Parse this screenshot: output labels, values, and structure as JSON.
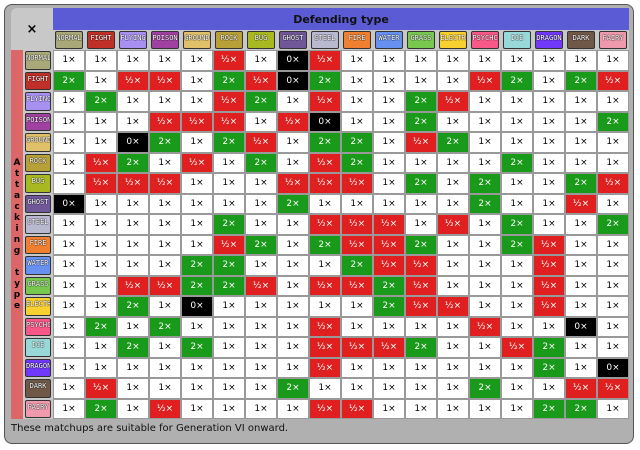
{
  "corner": "×",
  "header": "Defending type",
  "side_title": "Attacking type",
  "types": [
    {
      "label": "NORMAL",
      "color": "#a8a878"
    },
    {
      "label": "FIGHT",
      "color": "#c03028"
    },
    {
      "label": "FLYING",
      "color": "#a890f0"
    },
    {
      "label": "POISON",
      "color": "#a040a0"
    },
    {
      "label": "GROUND",
      "color": "#e0c068"
    },
    {
      "label": "ROCK",
      "color": "#b8a038"
    },
    {
      "label": "BUG",
      "color": "#a8b820"
    },
    {
      "label": "GHOST",
      "color": "#705898"
    },
    {
      "label": "STEEL",
      "color": "#b8b8d0"
    },
    {
      "label": "FIRE",
      "color": "#f08030"
    },
    {
      "label": "WATER",
      "color": "#6890f0"
    },
    {
      "label": "GRASS",
      "color": "#78c850"
    },
    {
      "label": "ELECTR",
      "color": "#f8d030"
    },
    {
      "label": "PSYCHC",
      "color": "#f85888"
    },
    {
      "label": "ICE",
      "color": "#98d8d8"
    },
    {
      "label": "DRAGON",
      "color": "#7038f8"
    },
    {
      "label": "DARK",
      "color": "#705848"
    },
    {
      "label": "FAIRY",
      "color": "#ee99ac"
    }
  ],
  "colors": {
    "1×": [
      "#ffffff",
      "#000000"
    ],
    "2×": [
      "#1a9a1a",
      "#ffffff"
    ],
    "½×": [
      "#e02020",
      "#ffffff"
    ],
    "0×": [
      "#000000",
      "#ffffff"
    ]
  },
  "matrix": [
    [
      "1×",
      "1×",
      "1×",
      "1×",
      "1×",
      "½×",
      "1×",
      "0×",
      "½×",
      "1×",
      "1×",
      "1×",
      "1×",
      "1×",
      "1×",
      "1×",
      "1×",
      "1×"
    ],
    [
      "2×",
      "1×",
      "½×",
      "½×",
      "1×",
      "2×",
      "½×",
      "0×",
      "2×",
      "1×",
      "1×",
      "1×",
      "1×",
      "½×",
      "2×",
      "1×",
      "2×",
      "½×"
    ],
    [
      "1×",
      "2×",
      "1×",
      "1×",
      "1×",
      "½×",
      "2×",
      "1×",
      "½×",
      "1×",
      "1×",
      "2×",
      "½×",
      "1×",
      "1×",
      "1×",
      "1×",
      "1×"
    ],
    [
      "1×",
      "1×",
      "1×",
      "½×",
      "½×",
      "½×",
      "1×",
      "½×",
      "0×",
      "1×",
      "1×",
      "2×",
      "1×",
      "1×",
      "1×",
      "1×",
      "1×",
      "2×"
    ],
    [
      "1×",
      "1×",
      "0×",
      "2×",
      "1×",
      "2×",
      "½×",
      "1×",
      "2×",
      "2×",
      "1×",
      "½×",
      "2×",
      "1×",
      "1×",
      "1×",
      "1×",
      "1×"
    ],
    [
      "1×",
      "½×",
      "2×",
      "1×",
      "½×",
      "1×",
      "2×",
      "1×",
      "½×",
      "2×",
      "1×",
      "1×",
      "1×",
      "1×",
      "2×",
      "1×",
      "1×",
      "1×"
    ],
    [
      "1×",
      "½×",
      "½×",
      "½×",
      "1×",
      "1×",
      "1×",
      "½×",
      "½×",
      "½×",
      "1×",
      "2×",
      "1×",
      "2×",
      "1×",
      "1×",
      "2×",
      "½×"
    ],
    [
      "0×",
      "1×",
      "1×",
      "1×",
      "1×",
      "1×",
      "1×",
      "2×",
      "1×",
      "1×",
      "1×",
      "1×",
      "1×",
      "2×",
      "1×",
      "1×",
      "½×",
      "1×"
    ],
    [
      "1×",
      "1×",
      "1×",
      "1×",
      "1×",
      "2×",
      "1×",
      "1×",
      "½×",
      "½×",
      "½×",
      "1×",
      "½×",
      "1×",
      "2×",
      "1×",
      "1×",
      "2×"
    ],
    [
      "1×",
      "1×",
      "1×",
      "1×",
      "1×",
      "½×",
      "2×",
      "1×",
      "2×",
      "½×",
      "½×",
      "2×",
      "1×",
      "1×",
      "2×",
      "½×",
      "1×",
      "1×"
    ],
    [
      "1×",
      "1×",
      "1×",
      "1×",
      "2×",
      "2×",
      "1×",
      "1×",
      "1×",
      "2×",
      "½×",
      "½×",
      "1×",
      "1×",
      "1×",
      "½×",
      "1×",
      "1×"
    ],
    [
      "1×",
      "1×",
      "½×",
      "½×",
      "2×",
      "2×",
      "½×",
      "1×",
      "½×",
      "½×",
      "2×",
      "½×",
      "1×",
      "1×",
      "1×",
      "½×",
      "1×",
      "1×"
    ],
    [
      "1×",
      "1×",
      "2×",
      "1×",
      "0×",
      "1×",
      "1×",
      "1×",
      "1×",
      "1×",
      "2×",
      "½×",
      "½×",
      "1×",
      "1×",
      "½×",
      "1×",
      "1×"
    ],
    [
      "1×",
      "2×",
      "1×",
      "2×",
      "1×",
      "1×",
      "1×",
      "1×",
      "½×",
      "1×",
      "1×",
      "1×",
      "1×",
      "½×",
      "1×",
      "1×",
      "0×",
      "1×"
    ],
    [
      "1×",
      "1×",
      "2×",
      "1×",
      "2×",
      "1×",
      "1×",
      "1×",
      "½×",
      "½×",
      "½×",
      "2×",
      "1×",
      "1×",
      "½×",
      "2×",
      "1×",
      "1×"
    ],
    [
      "1×",
      "1×",
      "1×",
      "1×",
      "1×",
      "1×",
      "1×",
      "1×",
      "½×",
      "1×",
      "1×",
      "1×",
      "1×",
      "1×",
      "1×",
      "2×",
      "1×",
      "0×"
    ],
    [
      "1×",
      "½×",
      "1×",
      "1×",
      "1×",
      "1×",
      "1×",
      "2×",
      "1×",
      "1×",
      "1×",
      "1×",
      "1×",
      "2×",
      "1×",
      "1×",
      "½×",
      "½×"
    ],
    [
      "1×",
      "2×",
      "1×",
      "½×",
      "1×",
      "1×",
      "1×",
      "1×",
      "½×",
      "½×",
      "1×",
      "1×",
      "1×",
      "1×",
      "1×",
      "2×",
      "2×",
      "1×"
    ]
  ],
  "footer": "These matchups are suitable for Generation VI onward."
}
